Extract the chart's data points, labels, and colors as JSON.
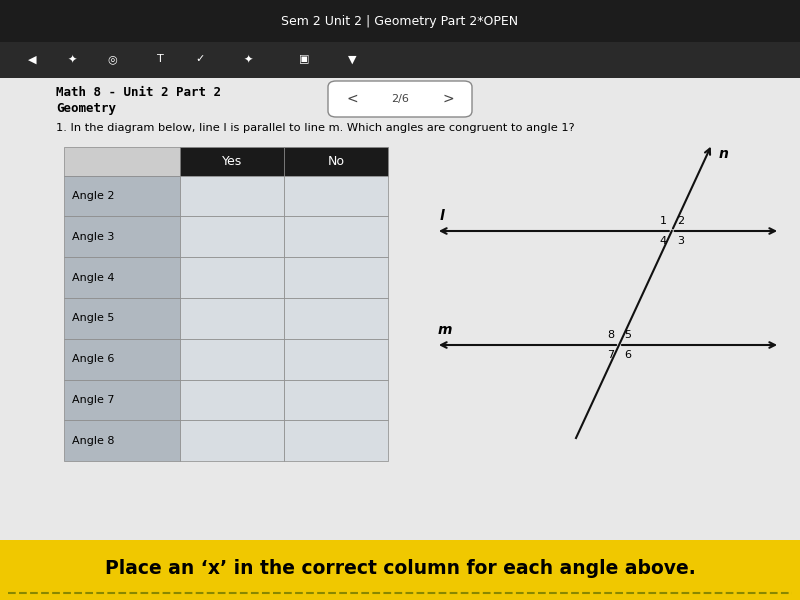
{
  "title": "Sem 2 Unit 2 | Geometry Part 2*OPEN",
  "subtitle_line1": "Math 8 - Unit 2 Part 2",
  "subtitle_line2": "Geometry",
  "nav_text": "2/6",
  "question": "1. In the diagram below, line l is parallel to line m. Which angles are congruent to angle 1?",
  "table_rows": [
    "Angle 2",
    "Angle 3",
    "Angle 4",
    "Angle 5",
    "Angle 6",
    "Angle 7",
    "Angle 8"
  ],
  "footer": "Place an ‘x’ in the correct column for each angle above.",
  "bg_color": "#2b2b2b",
  "footer_bg": "#f0c800",
  "footer_text_color": "#000000",
  "white": "#ffffff"
}
